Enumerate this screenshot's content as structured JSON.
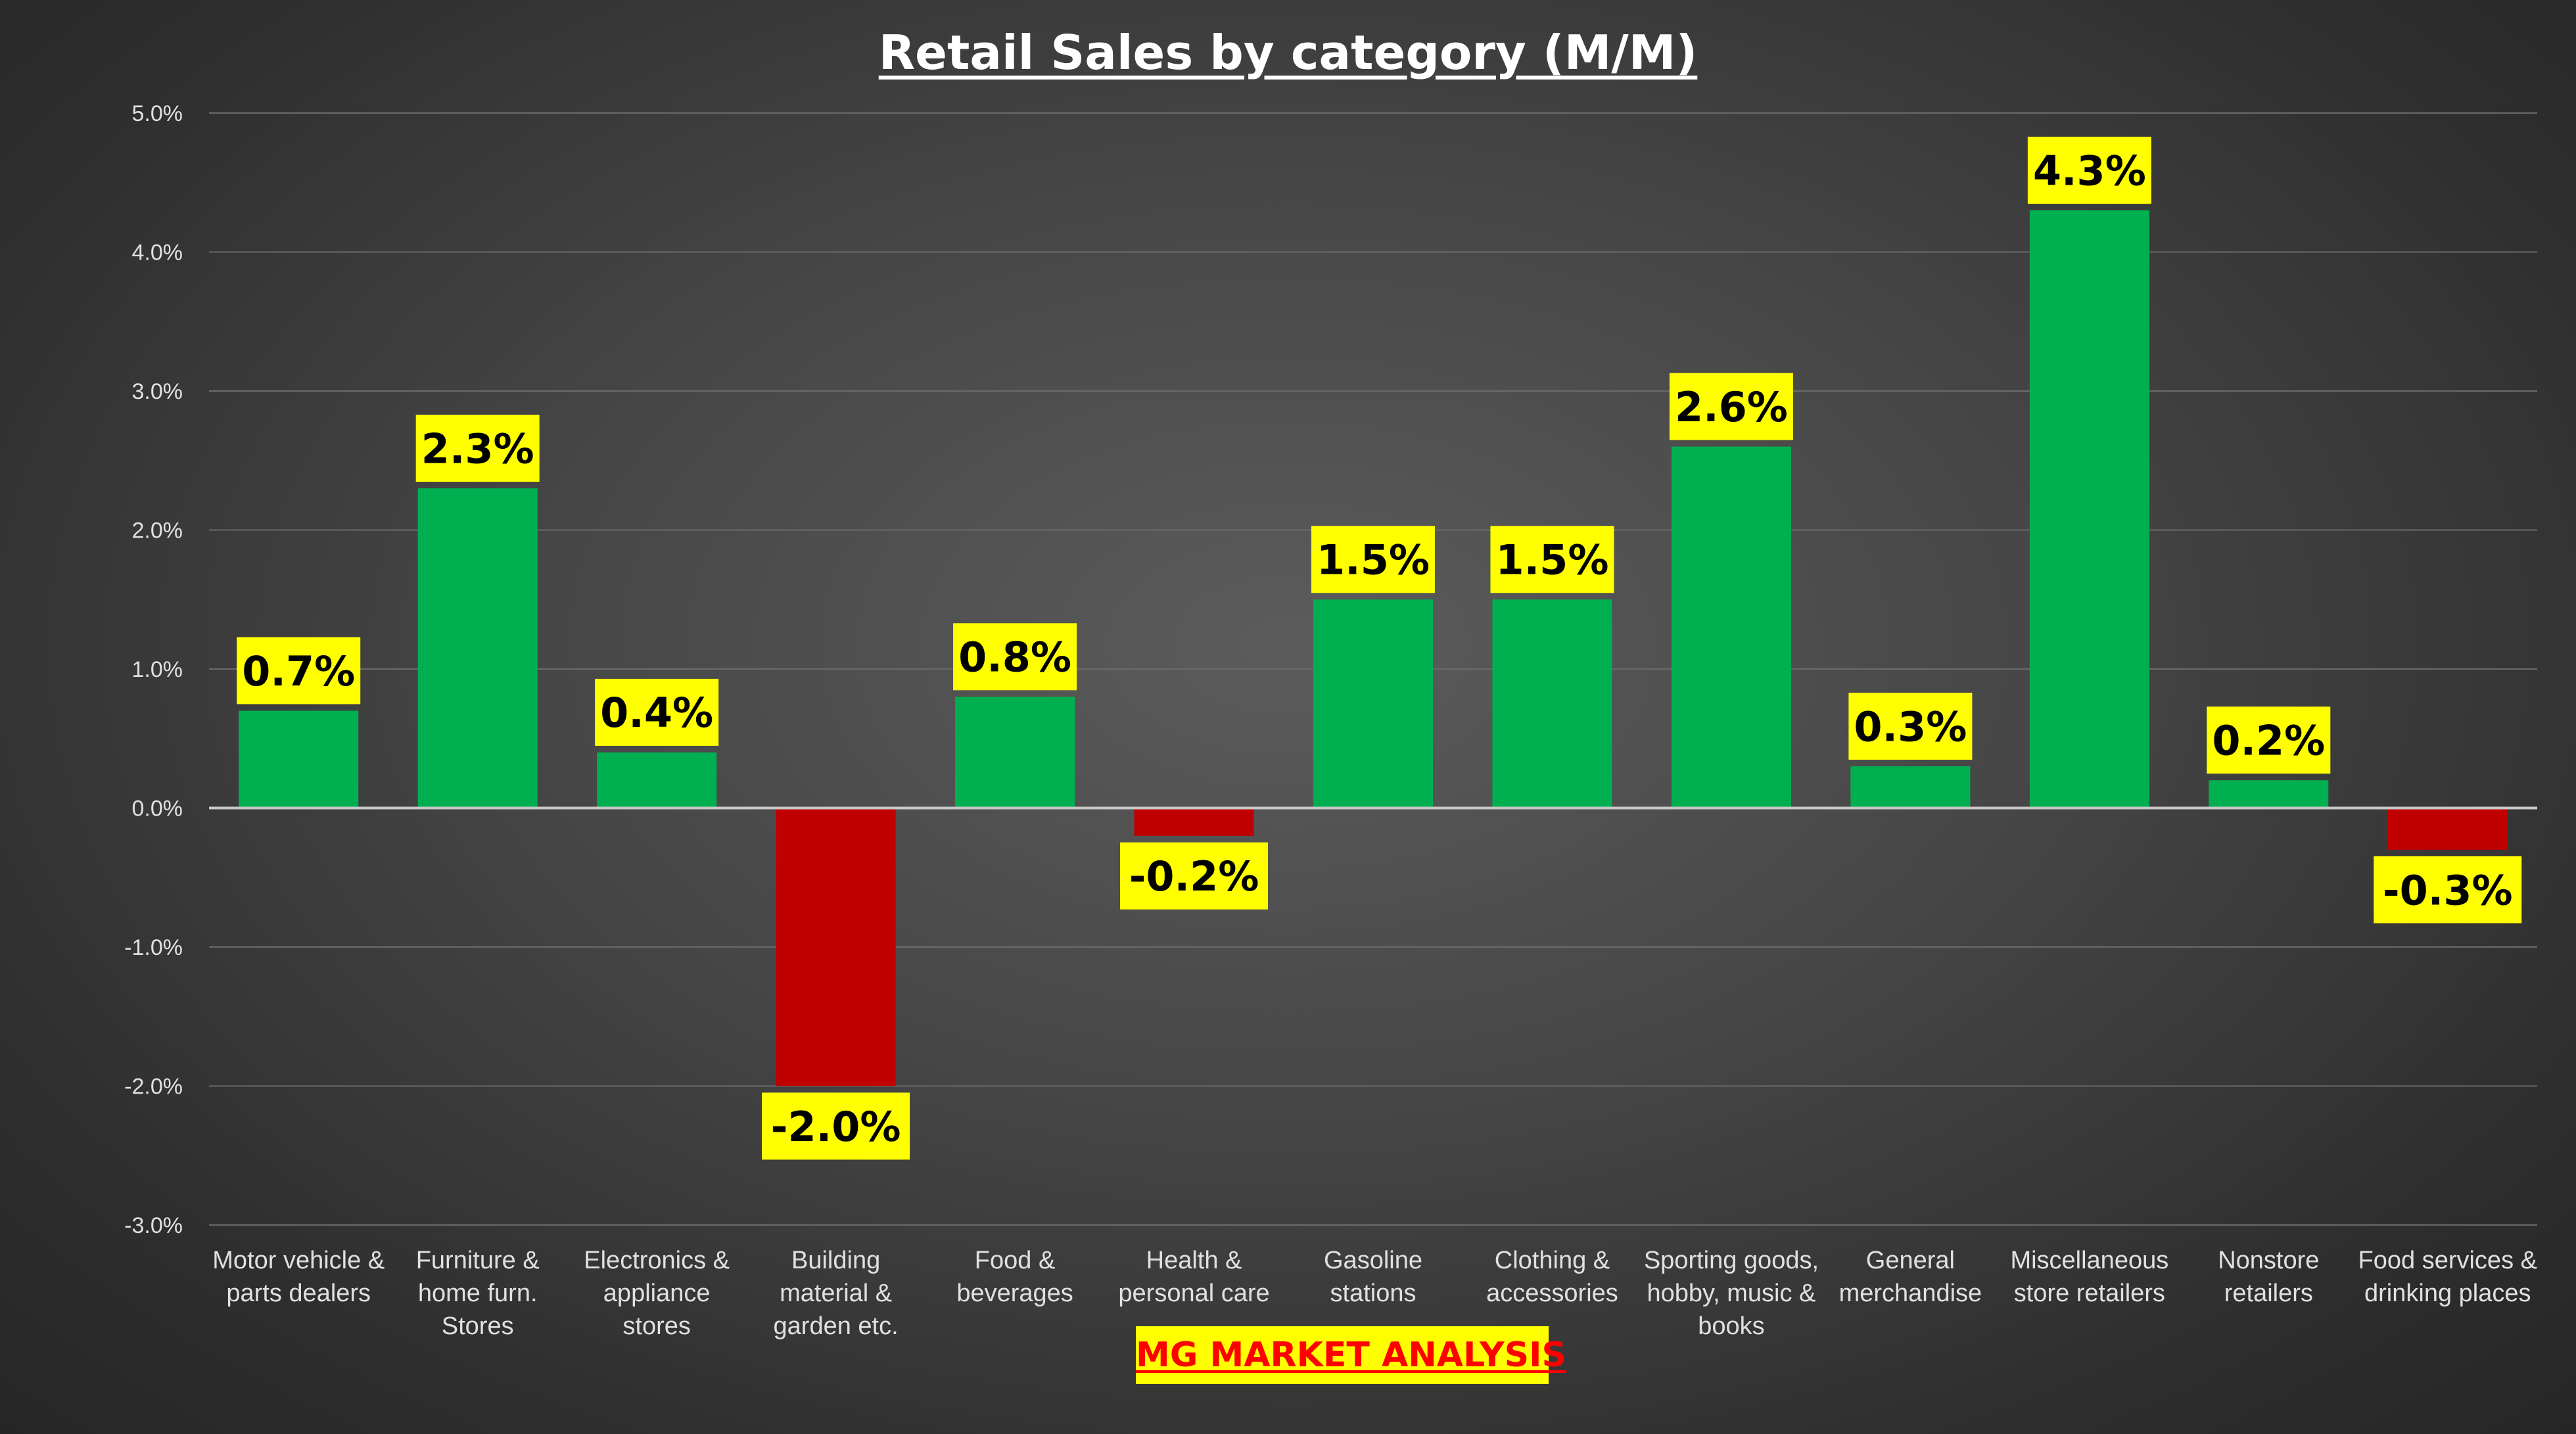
{
  "chart_data": {
    "type": "bar",
    "title": "Retail Sales by category (M/M)",
    "categories": [
      [
        "Motor vehicle &",
        "parts dealers"
      ],
      [
        "Furniture &",
        "home furn.",
        "Stores"
      ],
      [
        "Electronics &",
        "appliance",
        "stores"
      ],
      [
        "Building",
        "material &",
        "garden etc."
      ],
      [
        "Food &",
        "beverages"
      ],
      [
        "Health &",
        "personal care"
      ],
      [
        "Gasoline",
        "stations"
      ],
      [
        "Clothing &",
        "accessories"
      ],
      [
        "Sporting goods,",
        "hobby, music &",
        "books"
      ],
      [
        "General",
        "merchandise"
      ],
      [
        "Miscellaneous",
        "store retailers"
      ],
      [
        "Nonstore",
        "retailers"
      ],
      [
        "Food services &",
        "drinking places"
      ]
    ],
    "values": [
      0.7,
      2.3,
      0.4,
      -2.0,
      0.8,
      -0.2,
      1.5,
      1.5,
      2.6,
      0.3,
      4.3,
      0.2,
      -0.3
    ],
    "data_labels": [
      "0.7%",
      "2.3%",
      "0.4%",
      "-2.0%",
      "0.8%",
      "-0.2%",
      "1.5%",
      "1.5%",
      "2.6%",
      "0.3%",
      "4.3%",
      "0.2%",
      "-0.3%"
    ],
    "yticks": [
      5.0,
      4.0,
      3.0,
      2.0,
      1.0,
      0.0,
      -1.0,
      -2.0,
      -3.0
    ],
    "ytick_labels": [
      "5.0%",
      "4.0%",
      "3.0%",
      "2.0%",
      "1.0%",
      "0.0%",
      "-1.0%",
      "-2.0%",
      "-3.0%"
    ],
    "ylim": [
      -3.0,
      5.0
    ],
    "xlabel": "",
    "ylabel": "",
    "grid": true,
    "legend": "none",
    "colors": {
      "positive": "#00b050",
      "negative": "#c00000",
      "label_bg": "#ffff00",
      "label_text": "#000000",
      "axis_text": "#e0e0e0",
      "gridline": "#6a6a6a",
      "zero_line": "#c8c8c8"
    }
  },
  "watermark": "MG MARKET ANALYSIS"
}
